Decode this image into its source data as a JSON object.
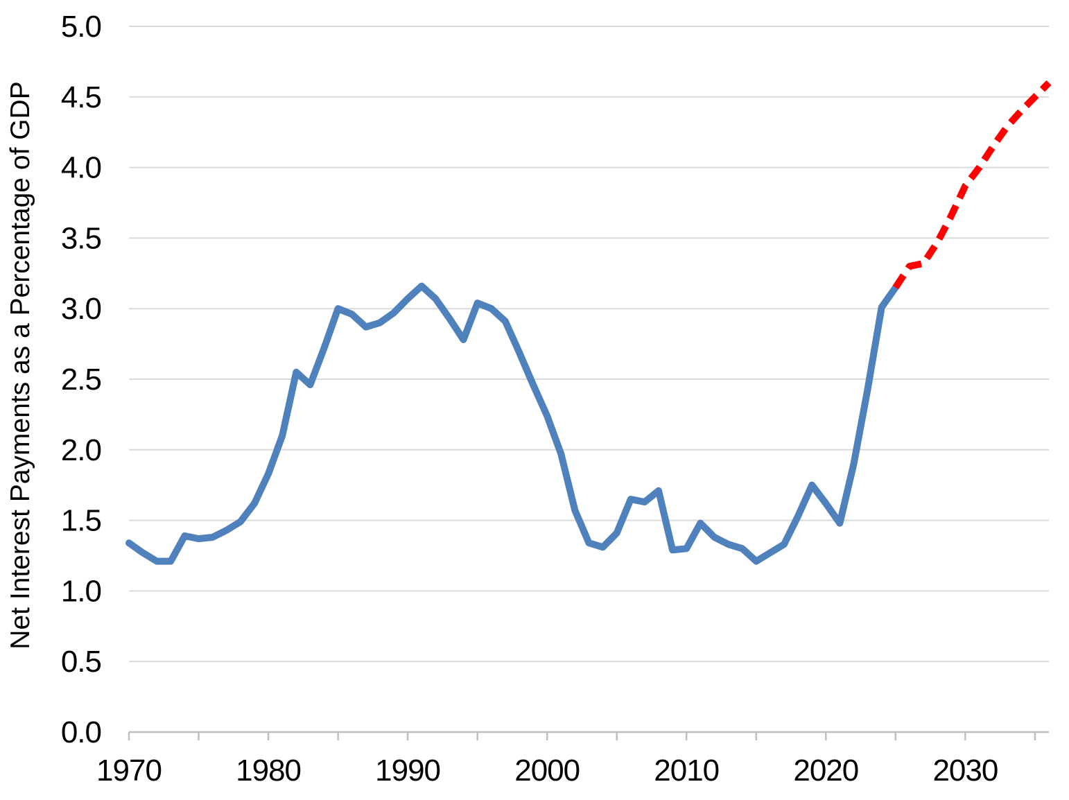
{
  "colors": {
    "background": "#FFFFFF",
    "gridline": "#D9D9D9",
    "axis": "#BFBFBF",
    "text": "#000000",
    "historical_line": "#4F81BD",
    "projected_line": "#FF0000"
  },
  "chart_data": {
    "type": "line",
    "title": "",
    "xlabel": "",
    "ylabel": "Net Interest Payments as a Percentage of GDP",
    "x_range": [
      1970,
      2036
    ],
    "ylim": [
      0.0,
      5.0
    ],
    "grid": "horizontal",
    "legend_position": "none",
    "y_tick_values": [
      0.0,
      0.5,
      1.0,
      1.5,
      2.0,
      2.5,
      3.0,
      3.5,
      4.0,
      4.5,
      5.0
    ],
    "y_tick_labels": [
      "0.0",
      "0.5",
      "1.0",
      "1.5",
      "2.0",
      "2.5",
      "3.0",
      "3.5",
      "4.0",
      "4.5",
      "5.0"
    ],
    "x_tick_labels": [
      "1970",
      "1980",
      "1990",
      "2000",
      "2010",
      "2020",
      "2030"
    ],
    "x_tick_label_years": [
      1970,
      1980,
      1990,
      2000,
      2010,
      2020,
      2030
    ],
    "x_minor_tick_years": [
      1970,
      1975,
      1980,
      1985,
      1990,
      1995,
      2000,
      2005,
      2010,
      2015,
      2020,
      2025,
      2030,
      2035
    ],
    "series": [
      {
        "name": "historical",
        "style": "solid",
        "color": "#4F81BD",
        "years": [
          1970,
          1971,
          1972,
          1973,
          1974,
          1975,
          1976,
          1977,
          1978,
          1979,
          1980,
          1981,
          1982,
          1983,
          1984,
          1985,
          1986,
          1987,
          1988,
          1989,
          1990,
          1991,
          1992,
          1993,
          1994,
          1995,
          1996,
          1997,
          1998,
          1999,
          2000,
          2001,
          2002,
          2003,
          2004,
          2005,
          2006,
          2007,
          2008,
          2009,
          2010,
          2011,
          2012,
          2013,
          2014,
          2015,
          2016,
          2017,
          2018,
          2019,
          2020,
          2021,
          2022,
          2023,
          2024,
          2025
        ],
        "values": [
          1.34,
          1.27,
          1.21,
          1.21,
          1.39,
          1.37,
          1.38,
          1.43,
          1.49,
          1.62,
          1.83,
          2.1,
          2.55,
          2.46,
          2.72,
          3.0,
          2.96,
          2.87,
          2.9,
          2.97,
          3.07,
          3.16,
          3.07,
          2.93,
          2.78,
          3.04,
          3.0,
          2.91,
          2.69,
          2.46,
          2.24,
          1.97,
          1.57,
          1.34,
          1.31,
          1.41,
          1.65,
          1.63,
          1.71,
          1.29,
          1.3,
          1.48,
          1.38,
          1.33,
          1.3,
          1.21,
          1.27,
          1.33,
          1.53,
          1.75,
          1.62,
          1.48,
          1.9,
          2.43,
          3.01,
          3.15
        ]
      },
      {
        "name": "projected",
        "style": "dashed",
        "color": "#FF0000",
        "years": [
          2025,
          2026,
          2027,
          2028,
          2029,
          2030,
          2031,
          2032,
          2033,
          2034,
          2035,
          2036
        ],
        "values": [
          3.15,
          3.3,
          3.32,
          3.47,
          3.66,
          3.87,
          4.0,
          4.15,
          4.29,
          4.4,
          4.5,
          4.6
        ]
      }
    ]
  }
}
